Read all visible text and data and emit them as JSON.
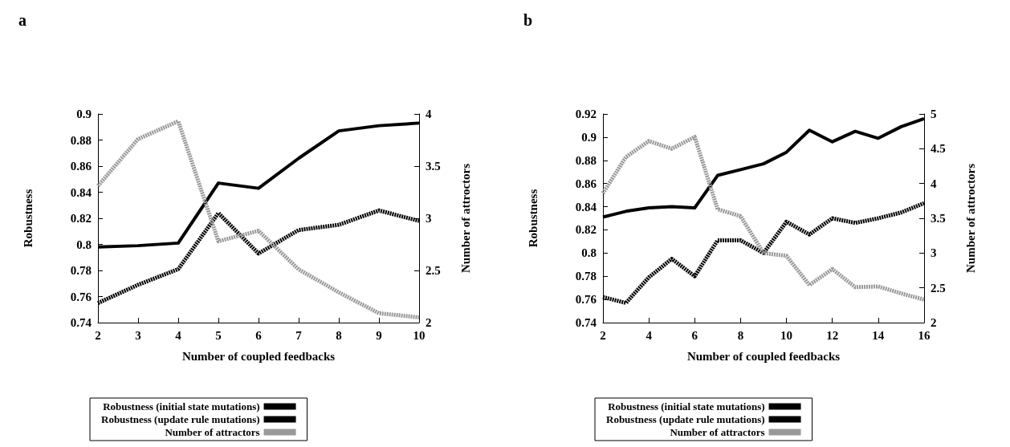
{
  "chart_data": [
    {
      "type": "line",
      "title": "a",
      "xlabel": "Number of coupled feedbacks",
      "ylabel": "Robustness",
      "y2label": "Number of attroctors",
      "x": [
        2,
        3,
        4,
        5,
        6,
        7,
        8,
        9,
        10
      ],
      "series": [
        {
          "name": "Robustness (initial state mutations)",
          "color": "#000000",
          "line_style": "solid",
          "values": [
            0.798,
            0.799,
            0.801,
            0.847,
            0.843,
            0.866,
            0.887,
            0.891,
            0.893
          ]
        },
        {
          "name": "Robustness (update rule mutations)",
          "color": "#000000",
          "line_style": "dotted",
          "values": [
            0.755,
            0.769,
            0.781,
            0.824,
            0.793,
            0.811,
            0.815,
            0.826,
            0.818
          ]
        },
        {
          "name": "Number of attractors",
          "color": "#999999",
          "line_style": "dotted",
          "axis": "y2",
          "values": [
            3.31,
            3.76,
            3.93,
            2.78,
            2.88,
            2.51,
            2.29,
            2.09,
            2.05
          ]
        }
      ],
      "xlim": [
        2,
        10
      ],
      "xticks": [
        2,
        3,
        4,
        5,
        6,
        7,
        8,
        9,
        10
      ],
      "ylim": [
        0.74,
        0.9
      ],
      "yticks": [
        0.74,
        0.76,
        0.78,
        0.8,
        0.82,
        0.84,
        0.86,
        0.88,
        0.9
      ],
      "y2lim": [
        2,
        4
      ],
      "y2ticks": [
        2,
        2.5,
        3,
        3.5,
        4
      ],
      "legend": "bottom",
      "grid": false,
      "marker": "none"
    },
    {
      "type": "line",
      "title": "b",
      "xlabel": "Number of coupled feedbacks",
      "ylabel": "Robustness",
      "y2label": "Number of attroctors",
      "x": [
        2,
        3,
        4,
        5,
        6,
        7,
        8,
        9,
        10,
        11,
        12,
        13,
        14,
        15,
        16
      ],
      "series": [
        {
          "name": "Robustness (initial state mutations)",
          "color": "#000000",
          "line_style": "solid",
          "values": [
            0.831,
            0.836,
            0.839,
            0.84,
            0.839,
            0.867,
            0.872,
            0.877,
            0.887,
            0.906,
            0.896,
            0.905,
            0.899,
            0.909,
            0.916
          ]
        },
        {
          "name": "Robustness (update rule mutations)",
          "color": "#000000",
          "line_style": "dotted",
          "values": [
            0.762,
            0.757,
            0.779,
            0.795,
            0.78,
            0.811,
            0.811,
            0.8,
            0.827,
            0.816,
            0.83,
            0.826,
            0.83,
            0.835,
            0.843
          ]
        },
        {
          "name": "Number of attractors",
          "color": "#999999",
          "line_style": "dotted",
          "axis": "y2",
          "values": [
            3.86,
            4.38,
            4.61,
            4.5,
            4.67,
            3.63,
            3.53,
            3.0,
            2.96,
            2.54,
            2.77,
            2.51,
            2.52,
            2.42,
            2.33
          ]
        }
      ],
      "xlim": [
        2,
        16
      ],
      "xticks": [
        2,
        4,
        6,
        8,
        10,
        12,
        14,
        16
      ],
      "ylim": [
        0.74,
        0.92
      ],
      "yticks": [
        0.74,
        0.76,
        0.78,
        0.8,
        0.82,
        0.84,
        0.86,
        0.88,
        0.9,
        0.92
      ],
      "y2lim": [
        2,
        5
      ],
      "y2ticks": [
        2,
        2.5,
        3,
        3.5,
        4,
        4.5,
        5
      ],
      "legend": "bottom",
      "grid": false,
      "marker": "none"
    }
  ]
}
